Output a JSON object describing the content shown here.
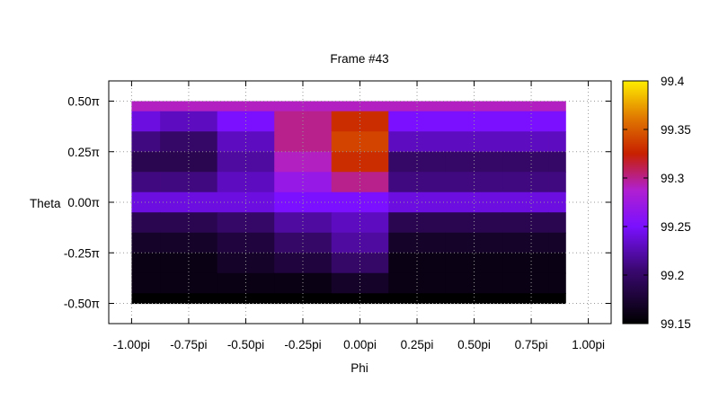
{
  "chart_data": {
    "type": "heatmap",
    "title": "Frame #43",
    "xlabel": "Phi",
    "ylabel": "Theta",
    "x_range": [
      -1.1,
      1.1
    ],
    "y_range": [
      -0.6,
      0.6
    ],
    "data_extent": {
      "x": [
        -1.0,
        0.9
      ],
      "y": [
        -0.5,
        0.5
      ]
    },
    "x_ticks": [
      {
        "value": -1.0,
        "label": "-1.00pi"
      },
      {
        "value": -0.75,
        "label": "-0.75pi"
      },
      {
        "value": -0.5,
        "label": "-0.50pi"
      },
      {
        "value": -0.25,
        "label": "-0.25pi"
      },
      {
        "value": 0.0,
        "label": "0.00pi"
      },
      {
        "value": 0.25,
        "label": "0.25pi"
      },
      {
        "value": 0.5,
        "label": "0.50pi"
      },
      {
        "value": 0.75,
        "label": "0.75pi"
      },
      {
        "value": 1.0,
        "label": "1.00pi"
      }
    ],
    "y_ticks": [
      {
        "value": 0.5,
        "label": "0.50π"
      },
      {
        "value": 0.25,
        "label": "0.25π"
      },
      {
        "value": 0.0,
        "label": "0.00π"
      },
      {
        "value": -0.25,
        "label": "-0.25π"
      },
      {
        "value": -0.5,
        "label": "-0.50π"
      }
    ],
    "colorbar": {
      "min": 99.15,
      "max": 99.4,
      "ticks": [
        {
          "value": 99.4,
          "label": "99.4"
        },
        {
          "value": 99.35,
          "label": "99.35"
        },
        {
          "value": 99.3,
          "label": "99.3"
        },
        {
          "value": 99.25,
          "label": "99.25"
        },
        {
          "value": 99.2,
          "label": "99.2"
        },
        {
          "value": 99.15,
          "label": "99.15"
        }
      ],
      "palette": "black-purple-red-orange-yellow"
    },
    "grid": true,
    "legend": "none",
    "approx_values": {
      "phi": [
        -1.0,
        -0.75,
        -0.5,
        -0.25,
        0.0,
        0.25,
        0.5,
        0.75,
        0.9
      ],
      "theta": [
        0.5,
        0.4,
        0.3,
        0.2,
        0.1,
        0.0,
        -0.1,
        -0.2,
        -0.3,
        -0.4,
        -0.5
      ],
      "values": [
        [
          99.29,
          99.29,
          99.29,
          99.29,
          99.29,
          99.29,
          99.29,
          99.29,
          99.29
        ],
        [
          99.24,
          99.23,
          99.25,
          99.3,
          99.33,
          99.25,
          99.25,
          99.25,
          99.25
        ],
        [
          99.21,
          99.2,
          99.23,
          99.3,
          99.34,
          99.23,
          99.23,
          99.23,
          99.23
        ],
        [
          99.19,
          99.19,
          99.22,
          99.29,
          99.33,
          99.2,
          99.2,
          99.2,
          99.2
        ],
        [
          99.21,
          99.21,
          99.23,
          99.27,
          99.3,
          99.21,
          99.21,
          99.21,
          99.21
        ],
        [
          99.24,
          99.24,
          99.24,
          99.25,
          99.25,
          99.24,
          99.24,
          99.24,
          99.24
        ],
        [
          99.19,
          99.19,
          99.2,
          99.22,
          99.23,
          99.19,
          99.19,
          99.19,
          99.19
        ],
        [
          99.17,
          99.17,
          99.18,
          99.2,
          99.22,
          99.17,
          99.17,
          99.17,
          99.17
        ],
        [
          99.16,
          99.16,
          99.17,
          99.18,
          99.2,
          99.16,
          99.16,
          99.16,
          99.16
        ],
        [
          99.16,
          99.16,
          99.16,
          99.16,
          99.17,
          99.16,
          99.16,
          99.16,
          99.16
        ],
        [
          99.15,
          99.15,
          99.15,
          99.15,
          99.15,
          99.15,
          99.15,
          99.15,
          99.15
        ]
      ]
    }
  }
}
